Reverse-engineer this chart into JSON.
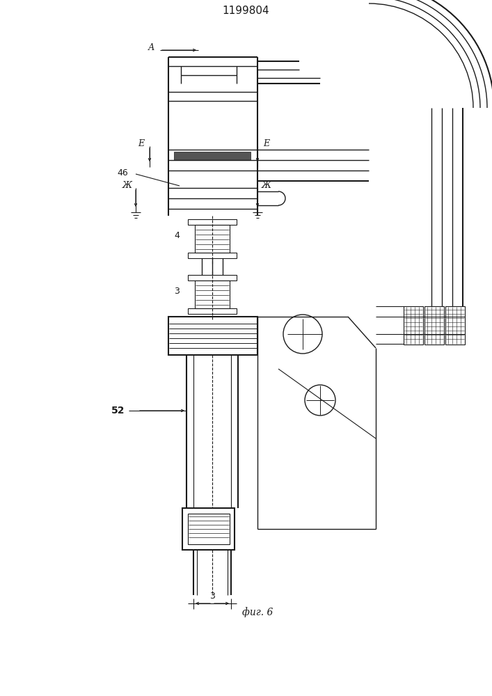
{
  "title": "1199804",
  "caption": "фиг. 6",
  "bg_color": "#ffffff",
  "line_color": "#1a1a1a",
  "title_fontsize": 11,
  "caption_fontsize": 10,
  "labels": {
    "A": "А",
    "E_left": "Е",
    "E_right": "Е",
    "Zh_left": "Ж",
    "Zh_right": "Ж",
    "num_46": "46",
    "num_4": "4",
    "num_3_mid": "3",
    "num_52": "52",
    "num_3_bot": "3"
  }
}
